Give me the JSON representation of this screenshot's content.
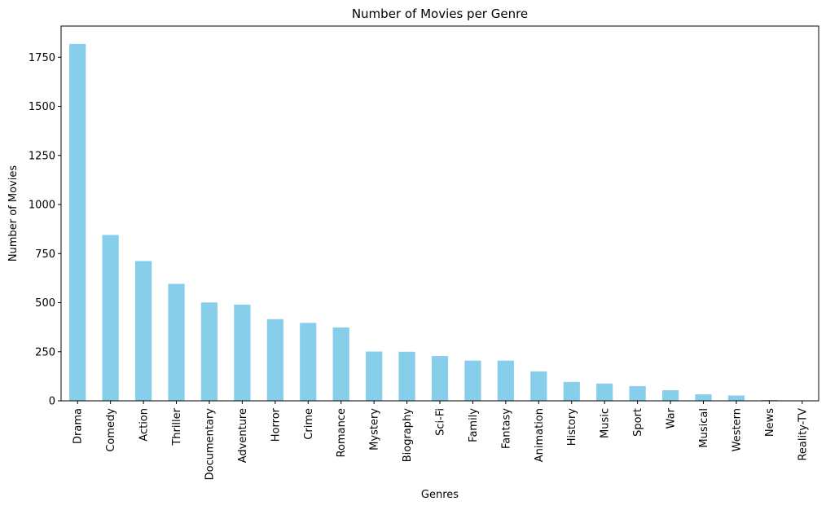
{
  "chart_data": {
    "type": "bar",
    "title": "Number of Movies per Genre",
    "xlabel": "Genres",
    "ylabel": "Number of Movies",
    "categories": [
      "Drama",
      "Comedy",
      "Action",
      "Thriller",
      "Documentary",
      "Adventure",
      "Horror",
      "Crime",
      "Romance",
      "Mystery",
      "Biography",
      "Sci-Fi",
      "Family",
      "Fantasy",
      "Animation",
      "History",
      "Music",
      "Sport",
      "War",
      "Musical",
      "Western",
      "News",
      "Reality-TV"
    ],
    "values": [
      1818,
      845,
      712,
      596,
      501,
      490,
      416,
      397,
      374,
      251,
      250,
      228,
      205,
      205,
      150,
      96,
      88,
      75,
      54,
      33,
      27,
      4,
      1
    ],
    "yticks": [
      0,
      250,
      500,
      750,
      1000,
      1250,
      1500,
      1750
    ],
    "ylim": [
      0,
      1909
    ],
    "grid": false,
    "bar_color": "#87ceeb"
  }
}
